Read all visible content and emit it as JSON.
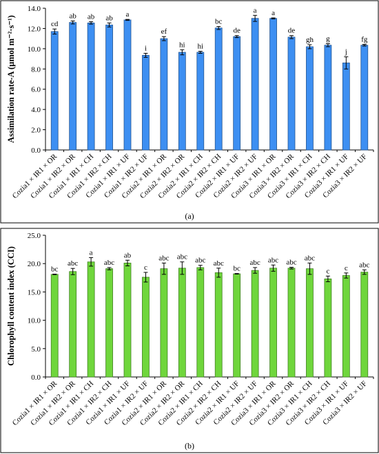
{
  "chart_data": [
    {
      "type": "bar",
      "caption": "(a)",
      "ylabel": "Assimilation rate-A  (µmol m⁻²·s⁻¹)",
      "ylim": [
        0,
        14
      ],
      "yticks": [
        "0.0",
        "2.0",
        "4.0",
        "6.0",
        "8.0",
        "10.0",
        "12.0",
        "14.0"
      ],
      "grid": false,
      "color": "#3d8ff2",
      "categories": [
        "Cozia1 × IR1 × OR",
        "Cozia1 × IR2 × OR",
        "Cozia1 × IR1 × CH",
        "Cozia1 × IR2 × CH",
        "Cozia1 × IR1 × UF",
        "Cozia1 × IR2 × UF",
        "Cozia2 × IR1 × OR",
        "Cozia2 × IR2 × OR",
        "Cozia2 × IR1 × CH",
        "Cozia2 × IR2 × CH",
        "Cozia2 × IR1 × UF",
        "Cozia2 × IR2 × UF",
        "Cozia3 × IR1 × OR",
        "Cozia3 × IR2 × OR",
        "Cozia3 × IR1 × CH",
        "Cozia3 × IR2 × CH",
        "Cozia3 × IR1 × UF",
        "Cozia3 × IR2 × UF"
      ],
      "values": [
        11.7,
        12.6,
        12.55,
        12.35,
        12.85,
        9.35,
        11.0,
        9.65,
        9.65,
        12.05,
        11.2,
        13.0,
        13.0,
        11.15,
        10.2,
        10.35,
        8.6,
        10.35
      ],
      "errors": [
        0.25,
        0.15,
        0.12,
        0.2,
        0.05,
        0.2,
        0.2,
        0.25,
        0.1,
        0.15,
        0.1,
        0.3,
        0.05,
        0.15,
        0.2,
        0.15,
        0.6,
        0.08
      ],
      "letters": [
        "cd",
        "ab",
        "ab",
        "ab",
        "a",
        "i",
        "ef",
        "hi",
        "hi",
        "bc",
        "de",
        "a",
        "a",
        "de",
        "gh",
        "g",
        "j",
        "fg"
      ]
    },
    {
      "type": "bar",
      "caption": "(b)",
      "ylabel": "Chlorophyll content index (CCI)",
      "ylim": [
        0,
        25
      ],
      "yticks": [
        "0.0",
        "5.0",
        "10.0",
        "15.0",
        "20.0",
        "25.0"
      ],
      "grid": false,
      "color": "#6fd63c",
      "categories": [
        "Cozia1 × IR1 × OR",
        "Cozia1 × IR2 × OR",
        "Cozia1 × IR1 × CH",
        "Cozia1 × IR2 × CH",
        "Cozia1 × IR1 × UF",
        "Cozia1 × IR2 × UF",
        "Cozia2 × IR1 × OR",
        "Cozia2 × IR2 × OR",
        "Cozia2 × IR1 × CH",
        "Cozia2 × IR2 × CH",
        "Cozia2 × IR1 × UF",
        "Cozia2 × IR2 × UF",
        "Cozia3 × IR1 × OR",
        "Cozia3 × IR2 × OR",
        "Cozia3 × IR1 × CH",
        "Cozia3 × IR2 × CH",
        "Cozia3 × IR1 × UF",
        "Cozia3 × IR2 × UF"
      ],
      "values": [
        18.1,
        18.6,
        20.3,
        19.1,
        20.1,
        17.6,
        19.1,
        19.2,
        19.3,
        18.4,
        18.2,
        18.8,
        19.2,
        19.2,
        19.1,
        17.3,
        17.9,
        18.5
      ],
      "errors": [
        0.05,
        0.55,
        0.75,
        0.2,
        0.5,
        0.85,
        1.0,
        1.1,
        0.4,
        0.8,
        0.05,
        0.5,
        0.55,
        0.15,
        1.0,
        0.5,
        0.45,
        0.4
      ],
      "letters": [
        "bc",
        "abc",
        "a",
        "abc",
        "ab",
        "c",
        "abc",
        "abc",
        "abc",
        "abc",
        "bc",
        "abc",
        "abc",
        "abc",
        "abc",
        "c",
        "c",
        "abc"
      ]
    }
  ]
}
